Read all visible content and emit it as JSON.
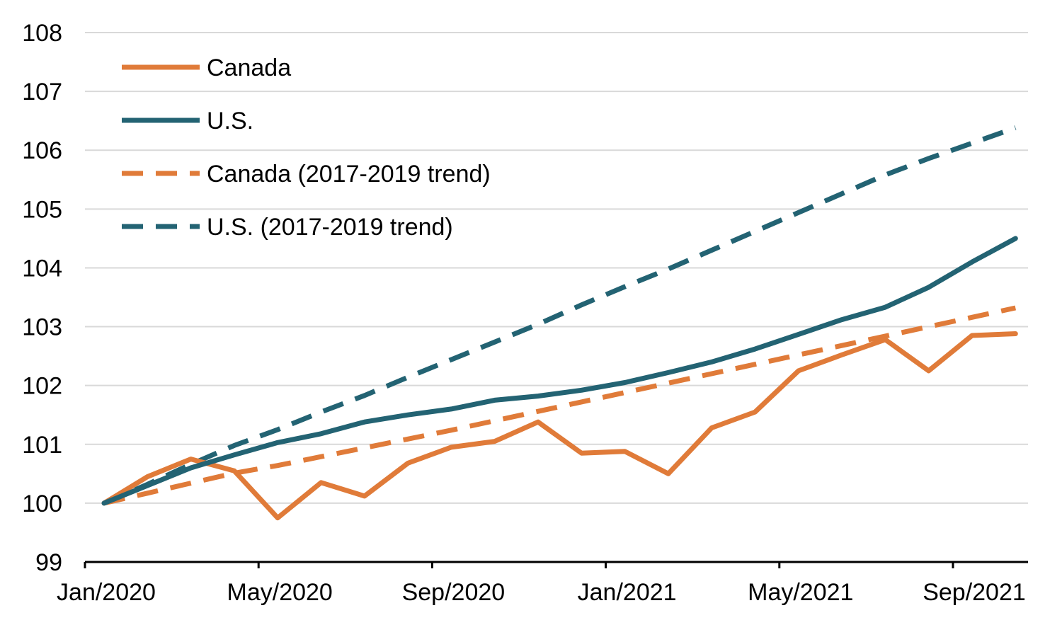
{
  "chart_data": {
    "type": "line",
    "x": [
      "Jan/2020",
      "Feb/2020",
      "Mar/2020",
      "Apr/2020",
      "May/2020",
      "Jun/2020",
      "Jul/2020",
      "Aug/2020",
      "Sep/2020",
      "Oct/2020",
      "Nov/2020",
      "Dec/2020",
      "Jan/2021",
      "Feb/2021",
      "Mar/2021",
      "Apr/2021",
      "May/2021",
      "Jun/2021",
      "Jul/2021",
      "Aug/2021",
      "Sep/2021",
      "Oct/2021"
    ],
    "xticks": [
      "Jan/2020",
      "May/2020",
      "Sep/2020",
      "Jan/2021",
      "May/2021",
      "Sep/2021"
    ],
    "ylim": [
      99,
      108
    ],
    "yticks": [
      "99",
      "100",
      "101",
      "102",
      "103",
      "104",
      "105",
      "106",
      "107",
      "108"
    ],
    "grid": true,
    "legend_position": "top-left",
    "title": "",
    "xlabel": "",
    "ylabel": "",
    "series": [
      {
        "name": "Canada",
        "color": "#e07b39",
        "dashed": false,
        "values": [
          100.0,
          100.45,
          100.75,
          100.55,
          99.75,
          100.35,
          100.12,
          100.68,
          100.95,
          101.05,
          101.38,
          100.85,
          100.88,
          100.5,
          101.28,
          101.55,
          102.25,
          102.52,
          102.78,
          102.25,
          102.85,
          102.88
        ]
      },
      {
        "name": "U.S.",
        "color": "#236373",
        "dashed": false,
        "values": [
          100.0,
          100.3,
          100.6,
          100.82,
          101.03,
          101.18,
          101.38,
          101.5,
          101.6,
          101.75,
          101.82,
          101.92,
          102.05,
          102.22,
          102.4,
          102.62,
          102.87,
          103.12,
          103.33,
          103.67,
          104.1,
          104.5
        ]
      },
      {
        "name": "Canada (2017-2019 trend)",
        "color": "#e07b39",
        "dashed": true,
        "values": [
          100.0,
          100.17,
          100.34,
          100.51,
          100.64,
          100.79,
          100.94,
          101.09,
          101.24,
          101.4,
          101.56,
          101.72,
          101.88,
          102.04,
          102.2,
          102.36,
          102.52,
          102.68,
          102.84,
          103.0,
          103.16,
          103.32
        ]
      },
      {
        "name": "U.S. (2017-2019 trend)",
        "color": "#236373",
        "dashed": true,
        "values": [
          100.0,
          100.32,
          100.66,
          100.98,
          101.25,
          101.55,
          101.83,
          102.14,
          102.44,
          102.74,
          103.04,
          103.37,
          103.68,
          103.98,
          104.3,
          104.62,
          104.94,
          105.26,
          105.58,
          105.86,
          106.12,
          106.38
        ]
      }
    ]
  }
}
